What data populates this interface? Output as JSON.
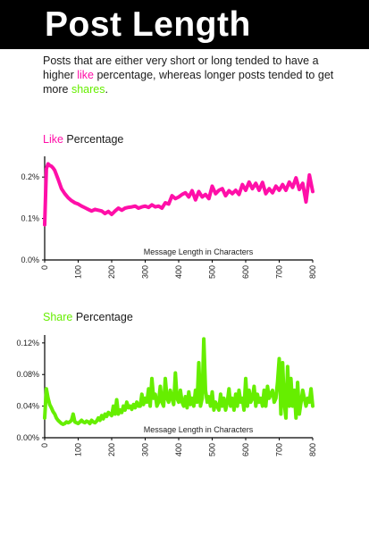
{
  "page": {
    "title": "Post Length",
    "intro_parts": [
      "Posts that are either very short  or long tended to have a higher ",
      "like",
      " percentage, whereas longer posts tended to get more ",
      "shares",
      "."
    ]
  },
  "colors": {
    "like": "#ff0fa8",
    "share": "#66ee00",
    "axis": "#000000",
    "title_bar": "#000000"
  },
  "chart_data": [
    {
      "type": "line",
      "title_parts": [
        "Like",
        " Percentage"
      ],
      "xlabel": "Message Length in Characters",
      "ylabel": "",
      "xlim": [
        0,
        800
      ],
      "ylim": [
        0.0,
        0.25
      ],
      "x_ticks": [
        0,
        100,
        200,
        300,
        400,
        500,
        600,
        700,
        800
      ],
      "y_ticks": [
        0.0,
        0.1,
        0.2
      ],
      "y_tick_labels": [
        "0.0%",
        "0.1%",
        "0.2%"
      ],
      "x": [
        0,
        5,
        10,
        15,
        20,
        25,
        30,
        40,
        50,
        60,
        70,
        80,
        90,
        100,
        110,
        120,
        130,
        140,
        150,
        160,
        170,
        180,
        190,
        200,
        210,
        220,
        230,
        240,
        250,
        260,
        270,
        280,
        290,
        300,
        310,
        320,
        330,
        340,
        350,
        360,
        370,
        380,
        390,
        400,
        410,
        420,
        430,
        440,
        450,
        460,
        470,
        480,
        490,
        500,
        510,
        520,
        530,
        540,
        550,
        560,
        570,
        580,
        590,
        600,
        610,
        620,
        630,
        640,
        650,
        660,
        670,
        680,
        690,
        700,
        710,
        720,
        730,
        740,
        750,
        760,
        770,
        780,
        790,
        800
      ],
      "y": [
        0.085,
        0.22,
        0.232,
        0.228,
        0.226,
        0.222,
        0.216,
        0.195,
        0.172,
        0.16,
        0.15,
        0.143,
        0.138,
        0.135,
        0.13,
        0.126,
        0.122,
        0.118,
        0.122,
        0.12,
        0.118,
        0.112,
        0.117,
        0.11,
        0.118,
        0.125,
        0.12,
        0.125,
        0.127,
        0.128,
        0.13,
        0.125,
        0.128,
        0.13,
        0.127,
        0.133,
        0.128,
        0.13,
        0.125,
        0.138,
        0.135,
        0.155,
        0.148,
        0.152,
        0.158,
        0.162,
        0.152,
        0.167,
        0.145,
        0.165,
        0.152,
        0.158,
        0.148,
        0.178,
        0.16,
        0.168,
        0.172,
        0.155,
        0.167,
        0.16,
        0.168,
        0.158,
        0.182,
        0.168,
        0.188,
        0.172,
        0.185,
        0.168,
        0.187,
        0.16,
        0.172,
        0.162,
        0.178,
        0.168,
        0.182,
        0.168,
        0.188,
        0.175,
        0.198,
        0.17,
        0.185,
        0.14,
        0.205,
        0.165
      ]
    },
    {
      "type": "line",
      "title_parts": [
        "Share",
        " Percentage"
      ],
      "xlabel": "Message Length in Characters",
      "ylabel": "",
      "xlim": [
        0,
        800
      ],
      "ylim": [
        0.0,
        0.13
      ],
      "x_ticks": [
        0,
        100,
        200,
        300,
        400,
        500,
        600,
        700,
        800
      ],
      "y_ticks": [
        0.0,
        0.04,
        0.08,
        0.12
      ],
      "y_tick_labels": [
        "0.00%",
        "0.04%",
        "0.08%",
        "0.12%"
      ],
      "x": [
        0,
        5,
        10,
        15,
        20,
        25,
        30,
        35,
        40,
        45,
        50,
        55,
        60,
        65,
        70,
        75,
        80,
        85,
        90,
        95,
        100,
        105,
        110,
        115,
        120,
        125,
        130,
        135,
        140,
        145,
        150,
        155,
        160,
        165,
        170,
        175,
        180,
        185,
        190,
        195,
        200,
        205,
        210,
        215,
        220,
        225,
        230,
        235,
        240,
        245,
        250,
        255,
        260,
        265,
        270,
        275,
        280,
        285,
        290,
        295,
        300,
        305,
        310,
        315,
        320,
        325,
        330,
        335,
        340,
        345,
        350,
        355,
        360,
        365,
        370,
        375,
        380,
        385,
        390,
        395,
        400,
        405,
        410,
        415,
        420,
        425,
        430,
        435,
        440,
        445,
        450,
        455,
        460,
        465,
        470,
        475,
        480,
        485,
        490,
        495,
        500,
        505,
        510,
        515,
        520,
        525,
        530,
        535,
        540,
        545,
        550,
        555,
        560,
        565,
        570,
        575,
        580,
        585,
        590,
        595,
        600,
        605,
        610,
        615,
        620,
        625,
        630,
        635,
        640,
        645,
        650,
        655,
        660,
        665,
        670,
        675,
        680,
        685,
        690,
        695,
        700,
        705,
        710,
        715,
        720,
        725,
        730,
        735,
        740,
        745,
        750,
        755,
        760,
        765,
        770,
        775,
        780,
        785,
        790,
        795,
        800
      ],
      "y": [
        0.025,
        0.062,
        0.05,
        0.042,
        0.038,
        0.033,
        0.03,
        0.025,
        0.022,
        0.02,
        0.018,
        0.017,
        0.018,
        0.02,
        0.019,
        0.02,
        0.022,
        0.03,
        0.02,
        0.019,
        0.018,
        0.02,
        0.022,
        0.02,
        0.019,
        0.021,
        0.02,
        0.018,
        0.022,
        0.02,
        0.019,
        0.021,
        0.025,
        0.022,
        0.028,
        0.024,
        0.03,
        0.027,
        0.032,
        0.03,
        0.028,
        0.04,
        0.03,
        0.048,
        0.03,
        0.035,
        0.032,
        0.04,
        0.035,
        0.045,
        0.038,
        0.04,
        0.036,
        0.042,
        0.038,
        0.045,
        0.04,
        0.04,
        0.055,
        0.042,
        0.05,
        0.045,
        0.062,
        0.04,
        0.075,
        0.05,
        0.055,
        0.04,
        0.045,
        0.065,
        0.045,
        0.04,
        0.075,
        0.05,
        0.045,
        0.06,
        0.05,
        0.042,
        0.082,
        0.05,
        0.045,
        0.06,
        0.045,
        0.04,
        0.052,
        0.038,
        0.058,
        0.042,
        0.05,
        0.04,
        0.06,
        0.045,
        0.095,
        0.04,
        0.05,
        0.125,
        0.06,
        0.045,
        0.052,
        0.04,
        0.058,
        0.035,
        0.045,
        0.04,
        0.035,
        0.055,
        0.04,
        0.05,
        0.035,
        0.045,
        0.062,
        0.04,
        0.05,
        0.035,
        0.055,
        0.04,
        0.06,
        0.045,
        0.05,
        0.035,
        0.075,
        0.04,
        0.06,
        0.045,
        0.05,
        0.065,
        0.04,
        0.055,
        0.045,
        0.05,
        0.04,
        0.06,
        0.04,
        0.065,
        0.05,
        0.055,
        0.06,
        0.045,
        0.05,
        0.07,
        0.1,
        0.03,
        0.095,
        0.045,
        0.025,
        0.09,
        0.04,
        0.075,
        0.04,
        0.06,
        0.025,
        0.07,
        0.03,
        0.045,
        0.06,
        0.05,
        0.04,
        0.05,
        0.045,
        0.062,
        0.04
      ]
    }
  ]
}
